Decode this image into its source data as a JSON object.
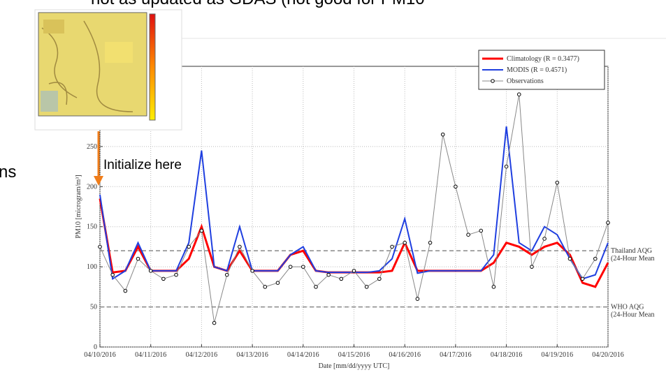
{
  "slide": {
    "top_text": "not as updated as GDAS (not good for PM10",
    "side_text": "ns",
    "annotation": "Initialize here"
  },
  "chart_data": {
    "type": "line",
    "x_label": "Date [mm/dd/yyyy UTC]",
    "y_label": "PM10 [microgram/m³]",
    "x": [
      "2016-04-10T00:00",
      "2016-04-10T06:00",
      "2016-04-10T12:00",
      "2016-04-10T18:00",
      "2016-04-11T00:00",
      "2016-04-11T06:00",
      "2016-04-11T12:00",
      "2016-04-11T18:00",
      "2016-04-12T00:00",
      "2016-04-12T06:00",
      "2016-04-12T12:00",
      "2016-04-12T18:00",
      "2016-04-13T00:00",
      "2016-04-13T06:00",
      "2016-04-13T12:00",
      "2016-04-13T18:00",
      "2016-04-14T00:00",
      "2016-04-14T06:00",
      "2016-04-14T12:00",
      "2016-04-14T18:00",
      "2016-04-15T00:00",
      "2016-04-15T06:00",
      "2016-04-15T12:00",
      "2016-04-15T18:00",
      "2016-04-16T00:00",
      "2016-04-16T06:00",
      "2016-04-16T12:00",
      "2016-04-16T18:00",
      "2016-04-17T00:00",
      "2016-04-17T06:00",
      "2016-04-17T12:00",
      "2016-04-17T18:00",
      "2016-04-18T00:00",
      "2016-04-18T06:00",
      "2016-04-18T12:00",
      "2016-04-18T18:00",
      "2016-04-19T00:00",
      "2016-04-19T06:00",
      "2016-04-19T12:00",
      "2016-04-19T18:00",
      "2016-04-20T00:00"
    ],
    "series": [
      {
        "name": "Climatology (R = 0.3477)",
        "color": "#ff0000",
        "width": 3,
        "markers": false,
        "values": [
          185,
          93,
          95,
          125,
          95,
          95,
          95,
          110,
          150,
          100,
          95,
          120,
          95,
          95,
          95,
          115,
          120,
          95,
          93,
          93,
          93,
          93,
          93,
          95,
          130,
          95,
          95,
          95,
          95,
          95,
          95,
          105,
          130,
          125,
          115,
          125,
          130,
          115,
          80,
          75,
          105
        ]
      },
      {
        "name": "MODIS (R = 0.4571)",
        "color": "#1f3fe0",
        "width": 2,
        "markers": false,
        "values": [
          190,
          85,
          95,
          130,
          95,
          95,
          95,
          130,
          245,
          100,
          95,
          150,
          95,
          95,
          95,
          115,
          125,
          95,
          93,
          93,
          93,
          93,
          95,
          110,
          160,
          92,
          95,
          95,
          95,
          95,
          95,
          115,
          275,
          130,
          120,
          150,
          140,
          110,
          85,
          90,
          130
        ]
      },
      {
        "name": "Observations",
        "color": "#888888",
        "width": 1,
        "markers": true,
        "values": [
          125,
          90,
          70,
          110,
          95,
          85,
          90,
          125,
          145,
          30,
          90,
          125,
          95,
          75,
          80,
          100,
          100,
          75,
          90,
          85,
          95,
          75,
          85,
          125,
          130,
          60,
          130,
          265,
          200,
          140,
          145,
          75,
          225,
          315,
          100,
          135,
          205,
          110,
          85,
          110,
          155
        ]
      }
    ],
    "xlim": [
      "2016-04-10",
      "2016-04-20"
    ],
    "xticks": [
      {
        "value": "2016-04-10",
        "label": "04/10/2016"
      },
      {
        "value": "2016-04-11",
        "label": "04/11/2016"
      },
      {
        "value": "2016-04-12",
        "label": "04/12/2016"
      },
      {
        "value": "2016-04-13",
        "label": "04/13/2016"
      },
      {
        "value": "2016-04-14",
        "label": "04/14/2016"
      },
      {
        "value": "2016-04-15",
        "label": "04/15/2016"
      },
      {
        "value": "2016-04-16",
        "label": "04/16/2016"
      },
      {
        "value": "2016-04-17",
        "label": "04/17/2016"
      },
      {
        "value": "2016-04-18",
        "label": "04/18/2016"
      },
      {
        "value": "2016-04-19",
        "label": "04/19/2016"
      },
      {
        "value": "2016-04-20",
        "label": "04/20/2016"
      }
    ],
    "ylim": [
      0,
      350
    ],
    "yticks": [
      0,
      50,
      100,
      150,
      200,
      250
    ],
    "grid": true,
    "legend": "upper right",
    "reference_lines": [
      {
        "value": 120,
        "label": [
          "Thailand AQG",
          "(24-Hour Mean"
        ]
      },
      {
        "value": 50,
        "label": [
          "WHO AQG",
          "(24-Hour Mean"
        ]
      }
    ]
  }
}
